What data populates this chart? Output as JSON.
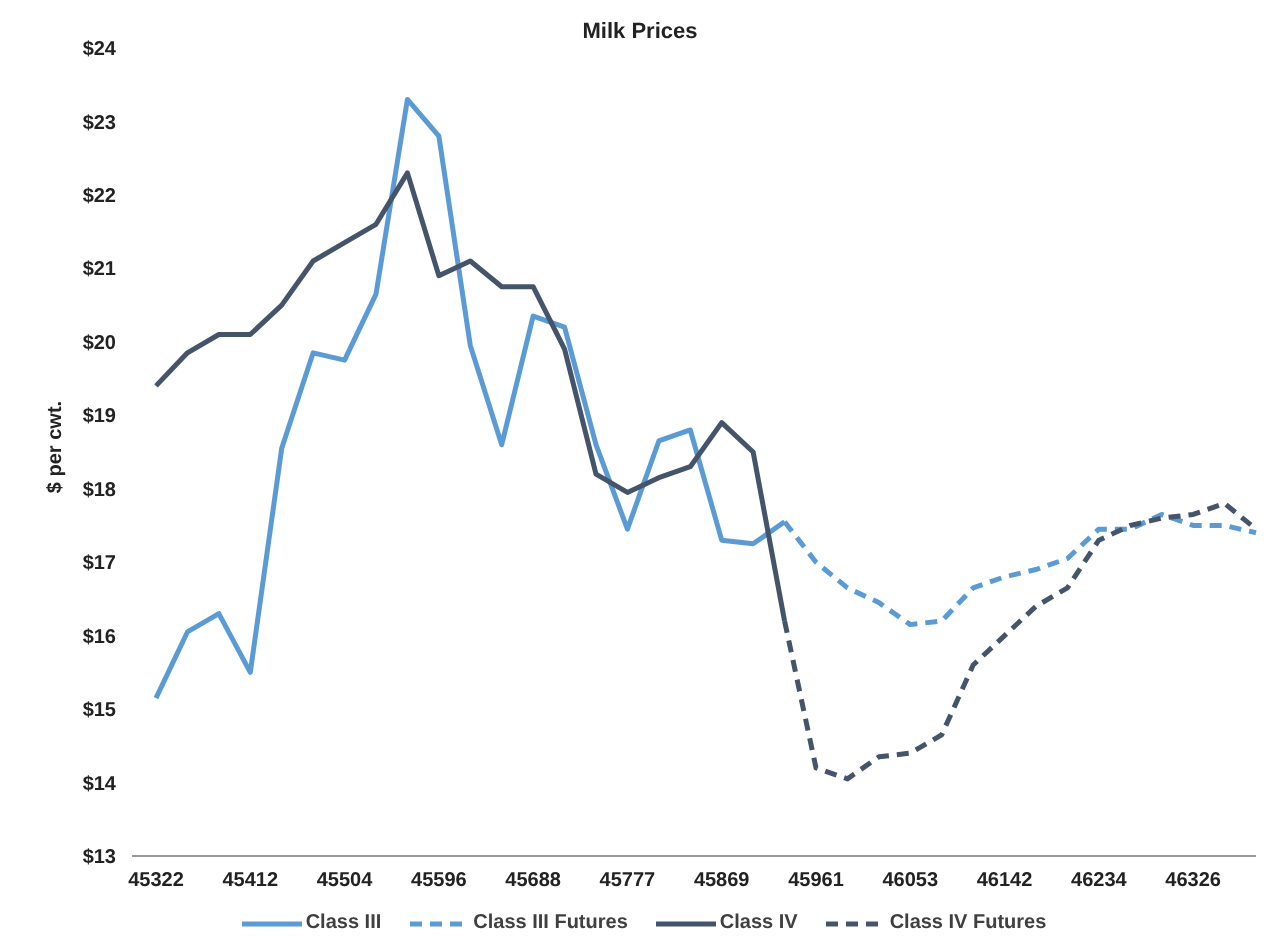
{
  "chart_data": {
    "type": "line",
    "title": "Milk Prices",
    "ylabel": "$ per cwt.",
    "categories": [
      "45322",
      null,
      null,
      "45412",
      null,
      null,
      "45504",
      null,
      null,
      "45596",
      null,
      null,
      "45688",
      null,
      null,
      "45777",
      null,
      null,
      "45869",
      null,
      null,
      "45961",
      null,
      null,
      "46053",
      null,
      null,
      "46142",
      null,
      null,
      "46234",
      null,
      null,
      "46326",
      null,
      null
    ],
    "series": [
      {
        "name": "Class III",
        "color": "#5b9bd5",
        "line_style": "solid",
        "values": [
          15.15,
          16.05,
          16.3,
          15.5,
          18.55,
          19.85,
          19.75,
          20.65,
          23.3,
          22.8,
          19.95,
          18.6,
          20.35,
          20.2,
          18.6,
          17.45,
          18.65,
          18.8,
          17.3,
          17.25,
          17.55,
          null,
          null,
          null,
          null,
          null,
          null,
          null,
          null,
          null,
          null,
          null,
          null,
          null,
          null,
          null
        ]
      },
      {
        "name": "Class III Futures",
        "color": "#5b9bd5",
        "line_style": "dashed",
        "values": [
          null,
          null,
          null,
          null,
          null,
          null,
          null,
          null,
          null,
          null,
          null,
          null,
          null,
          null,
          null,
          null,
          null,
          null,
          null,
          null,
          17.55,
          17.0,
          16.65,
          16.45,
          16.15,
          16.2,
          16.65,
          16.8,
          16.9,
          17.05,
          17.45,
          17.45,
          17.65,
          17.5,
          17.5,
          17.4
        ]
      },
      {
        "name": "Class IV",
        "color": "#44546a",
        "line_style": "solid",
        "values": [
          19.4,
          19.85,
          20.1,
          20.1,
          20.5,
          21.1,
          21.35,
          21.6,
          22.3,
          20.9,
          21.1,
          20.75,
          20.75,
          19.9,
          18.2,
          17.95,
          18.15,
          18.3,
          18.9,
          18.5,
          16.2,
          null,
          null,
          null,
          null,
          null,
          null,
          null,
          null,
          null,
          null,
          null,
          null,
          null,
          null,
          null
        ]
      },
      {
        "name": "Class IV Futures",
        "color": "#44546a",
        "line_style": "dashed",
        "values": [
          null,
          null,
          null,
          null,
          null,
          null,
          null,
          null,
          null,
          null,
          null,
          null,
          null,
          null,
          null,
          null,
          null,
          null,
          null,
          null,
          16.2,
          14.2,
          14.05,
          14.35,
          14.4,
          14.65,
          15.6,
          16.0,
          16.4,
          16.65,
          17.3,
          17.5,
          17.6,
          17.65,
          17.8,
          17.45
        ]
      }
    ],
    "ylim": [
      13,
      24
    ],
    "yticks": [
      {
        "value": 13,
        "label": "$13"
      },
      {
        "value": 14,
        "label": "$14"
      },
      {
        "value": 15,
        "label": "$15"
      },
      {
        "value": 16,
        "label": "$16"
      },
      {
        "value": 17,
        "label": "$17"
      },
      {
        "value": 18,
        "label": "$18"
      },
      {
        "value": 19,
        "label": "$19"
      },
      {
        "value": 20,
        "label": "$20"
      },
      {
        "value": 21,
        "label": "$21"
      },
      {
        "value": 22,
        "label": "$22"
      },
      {
        "value": 23,
        "label": "$23"
      },
      {
        "value": 24,
        "label": "$24"
      }
    ],
    "grid": false,
    "legend": "bottom",
    "marker": "none"
  }
}
